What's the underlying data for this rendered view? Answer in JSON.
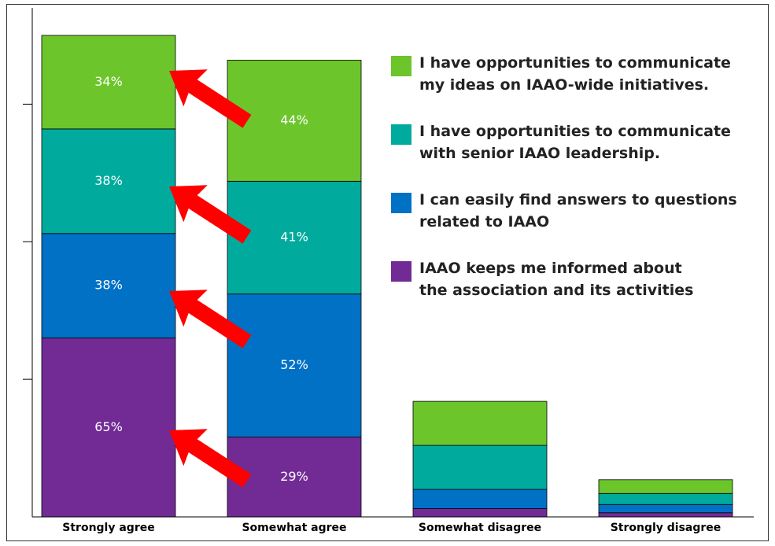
{
  "chart_data": {
    "type": "stacked_bar",
    "categories": [
      "Strongly agree",
      "Somewhat agree",
      "Somewhat disagree",
      "Strongly disagree"
    ],
    "series": [
      {
        "name": "IAAO keeps me informed about\nthe association and its activities",
        "color": "#722b95",
        "values": [
          65,
          29,
          3,
          1.5
        ],
        "value_labels": [
          "65%",
          "29%",
          null,
          null
        ]
      },
      {
        "name": "I can easily find answers to questions\nrelated to IAAO",
        "color": "#0071c5",
        "values": [
          38,
          52,
          7,
          3
        ],
        "value_labels": [
          "38%",
          "52%",
          null,
          null
        ]
      },
      {
        "name": "I have opportunities to communicate\nwith senior IAAO leadership.",
        "color": "#00ab9e",
        "values": [
          38,
          41,
          16,
          4
        ],
        "value_labels": [
          "38%",
          "41%",
          null,
          null
        ]
      },
      {
        "name": "I have opportunities to communicate\nmy ideas on IAAO-wide initiatives.",
        "color": "#6cc52b",
        "values": [
          34,
          44,
          16,
          5
        ],
        "value_labels": [
          "34%",
          "44%",
          null,
          null
        ]
      }
    ],
    "ylim": [
      0,
      185
    ],
    "yticks": [
      50,
      100,
      150
    ],
    "legend": "upper right"
  }
}
